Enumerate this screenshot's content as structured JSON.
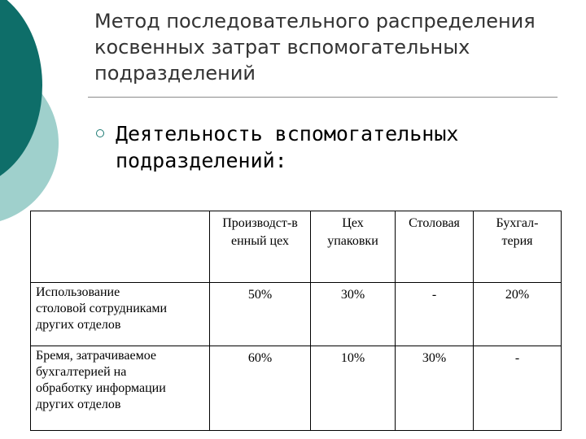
{
  "title": {
    "lines": [
      "Метод последовательного распределения",
      "косвенных затрат вспомогательных",
      "подразделений"
    ]
  },
  "bullet": {
    "lines": [
      "Деятельность вспомогательных",
      "подразделений:"
    ]
  },
  "table": {
    "columns": [
      {
        "lines": [
          "Производст-в",
          "енный цех"
        ]
      },
      {
        "lines": [
          "Цех",
          "упаковки"
        ]
      },
      {
        "lines": [
          "Столовая",
          ""
        ]
      },
      {
        "lines": [
          "Бухгал-",
          "терия"
        ]
      }
    ],
    "rows": [
      {
        "label_lines": [
          "Использование",
          "столовой сотрудниками",
          "других отделов"
        ],
        "values": [
          "50%",
          "30%",
          "-",
          "20%"
        ]
      },
      {
        "label_lines": [
          "Бремя, затрачиваемое",
          "бухгалтерией на",
          "обработку информации",
          "других отделов"
        ],
        "values": [
          "60%",
          "10%",
          "30%",
          "-"
        ]
      }
    ]
  }
}
